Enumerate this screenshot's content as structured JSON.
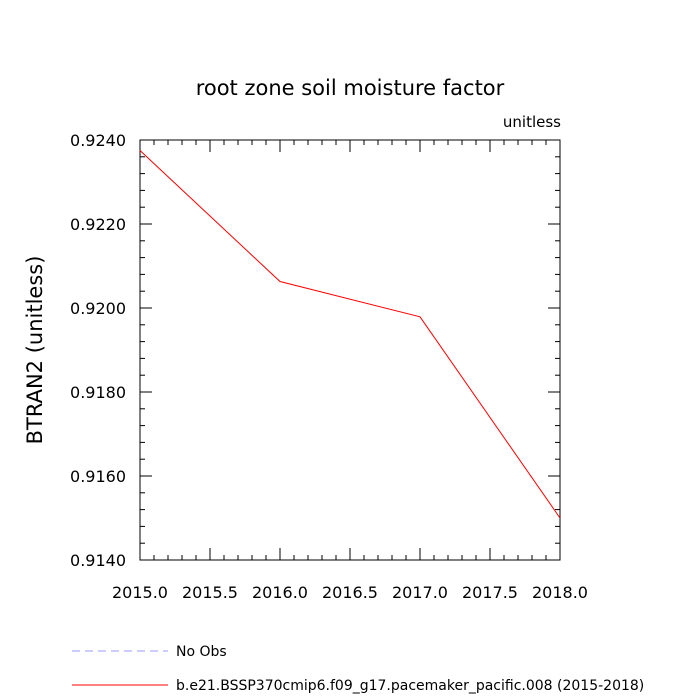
{
  "chart_data": {
    "type": "line",
    "title": "root zone soil moisture factor",
    "units_label": "unitless",
    "ylabel": "BTRAN2  (unitless)",
    "xlabel": "",
    "xlim": [
      2015.0,
      2018.0
    ],
    "ylim": [
      0.914,
      0.924
    ],
    "x_ticks": [
      "2015.0",
      "2015.5",
      "2016.0",
      "2016.5",
      "2017.0",
      "2017.5",
      "2018.0"
    ],
    "y_ticks": [
      "0.9140",
      "0.9160",
      "0.9180",
      "0.9200",
      "0.9220",
      "0.9240"
    ],
    "grid": false,
    "legend_position": "bottom",
    "series": [
      {
        "name": "No Obs",
        "color": "#9a9aff",
        "dashed": true,
        "x": [],
        "y": []
      },
      {
        "name": "b.e21.BSSP370cmip6.f09_g17.pacemaker_pacific.008 (2015-2018)",
        "color": "#ff0000",
        "dashed": false,
        "x": [
          2015,
          2016,
          2017,
          2018
        ],
        "y": [
          0.92375,
          0.92063,
          0.91979,
          0.915
        ]
      }
    ]
  }
}
